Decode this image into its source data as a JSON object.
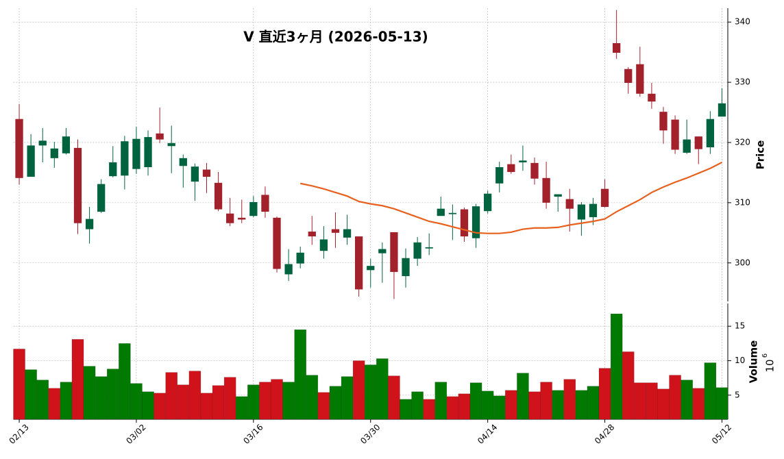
{
  "chart_data": {
    "type": "candlestick",
    "title": "V 直近3ヶ月 (2026-05-13)",
    "categories": [
      "02/13",
      null,
      null,
      null,
      null,
      null,
      null,
      null,
      null,
      null,
      "03/02",
      null,
      null,
      null,
      null,
      null,
      null,
      null,
      null,
      null,
      "03/16",
      null,
      null,
      null,
      null,
      null,
      null,
      null,
      null,
      null,
      "03/30",
      null,
      null,
      null,
      null,
      null,
      null,
      null,
      null,
      null,
      "04/14",
      null,
      null,
      null,
      null,
      null,
      null,
      null,
      null,
      null,
      "04/28",
      null,
      null,
      null,
      null,
      null,
      null,
      null,
      null,
      null,
      "05/12"
    ],
    "open": [
      323.9,
      314.3,
      319.5,
      317.4,
      318.2,
      319.1,
      305.6,
      308.5,
      314.4,
      314.5,
      315.6,
      315.9,
      321.5,
      319.4,
      316.1,
      313.5,
      315.5,
      313.3,
      308.2,
      307.5,
      307.8,
      311.3,
      307.5,
      298.1,
      299.9,
      305.2,
      302.0,
      305.6,
      304.2,
      304.4,
      298.8,
      301.6,
      305.1,
      297.8,
      300.7,
      302.4,
      307.8,
      308.1,
      308.9,
      304.1,
      308.6,
      313.2,
      316.4,
      316.7,
      316.6,
      314.1,
      311.0,
      310.6,
      307.2,
      307.6,
      312.3,
      336.5,
      332.2,
      333.0,
      328.1,
      325.1,
      323.8,
      318.3,
      321.0,
      319.2,
      324.3
    ],
    "high": [
      326.4,
      321.4,
      322.4,
      320.1,
      322.4,
      320.5,
      309.3,
      313.9,
      319.4,
      321.1,
      322.6,
      322.0,
      325.8,
      322.8,
      318.0,
      316.5,
      316.6,
      315.1,
      310.8,
      310.5,
      311.1,
      312.7,
      307.7,
      302.3,
      302.7,
      307.8,
      306.1,
      308.4,
      308.0,
      304.4,
      300.7,
      303.4,
      305.1,
      302.4,
      304.3,
      304.9,
      311.0,
      309.7,
      309.2,
      309.8,
      312.0,
      316.8,
      318.0,
      319.5,
      317.5,
      316.8,
      311.4,
      312.3,
      310.1,
      310.8,
      313.9,
      342.0,
      332.5,
      335.9,
      329.9,
      325.9,
      324.5,
      323.8,
      321.0,
      325.2,
      329.0
    ],
    "low": [
      313.0,
      314.3,
      316.7,
      315.8,
      318.0,
      304.8,
      303.2,
      308.3,
      314.2,
      312.2,
      314.8,
      314.5,
      319.9,
      314.9,
      312.5,
      310.3,
      311.6,
      308.6,
      306.1,
      306.6,
      307.6,
      307.5,
      298.4,
      297.0,
      299.1,
      303.0,
      300.7,
      302.5,
      303.0,
      294.4,
      295.9,
      296.7,
      294.0,
      295.9,
      299.5,
      301.3,
      307.8,
      303.8,
      303.5,
      302.5,
      308.2,
      311.7,
      314.8,
      315.3,
      313.0,
      309.0,
      308.5,
      305.2,
      304.5,
      306.3,
      309.2,
      333.9,
      328.1,
      327.6,
      325.6,
      319.8,
      318.1,
      318.1,
      316.4,
      318.1,
      324.3
    ],
    "close": [
      314.1,
      319.5,
      320.3,
      319.0,
      321.0,
      306.6,
      307.3,
      313.1,
      316.7,
      320.2,
      320.6,
      320.9,
      320.5,
      319.9,
      317.4,
      316.0,
      314.3,
      308.9,
      306.6,
      307.2,
      310.1,
      308.5,
      299.0,
      299.8,
      301.7,
      304.4,
      303.9,
      305.0,
      305.6,
      295.6,
      299.5,
      302.3,
      298.5,
      300.8,
      303.4,
      302.6,
      309.0,
      308.3,
      304.4,
      309.4,
      311.5,
      315.9,
      315.1,
      317.0,
      314.0,
      310.0,
      311.4,
      309.0,
      309.7,
      309.8,
      309.3,
      334.9,
      329.9,
      328.1,
      326.8,
      322.0,
      318.8,
      320.5,
      318.9,
      323.9,
      326.5
    ],
    "up_color": "#006340",
    "down_color": "#a3212b",
    "moving_average": {
      "color": "#e8601c",
      "values": [
        null,
        null,
        null,
        null,
        null,
        null,
        null,
        null,
        null,
        null,
        null,
        null,
        null,
        null,
        null,
        null,
        null,
        null,
        null,
        null,
        null,
        null,
        null,
        null,
        313.2,
        312.8,
        312.3,
        311.7,
        311.1,
        310.2,
        309.8,
        309.5,
        309.0,
        308.3,
        307.6,
        306.9,
        306.5,
        306.0,
        305.5,
        305.0,
        304.9,
        304.9,
        305.1,
        305.6,
        305.8,
        305.8,
        305.9,
        306.3,
        306.6,
        306.9,
        307.3,
        308.5,
        309.5,
        310.5,
        311.7,
        312.6,
        313.4,
        314.1,
        314.9,
        315.7,
        316.7
      ]
    },
    "ylabel": "Price",
    "ylim": [
      293.6,
      342.3
    ],
    "yticks": [
      300,
      310,
      320,
      330,
      340
    ],
    "grid": true,
    "volume": {
      "label": "Volume",
      "scale_base": "10",
      "scale_exponent": "6",
      "up_color": "#007a00",
      "down_color": "#d0121b",
      "ylim": [
        1.5,
        18.3
      ],
      "yticks": [
        5,
        10,
        15
      ],
      "values": [
        11.7,
        8.7,
        7.2,
        6.0,
        6.9,
        13.1,
        9.2,
        7.7,
        8.8,
        12.5,
        6.7,
        5.5,
        5.3,
        8.3,
        6.5,
        8.5,
        5.3,
        6.4,
        7.6,
        4.8,
        6.5,
        6.9,
        7.3,
        6.9,
        14.5,
        7.9,
        5.4,
        6.3,
        7.7,
        10.0,
        9.4,
        10.3,
        7.8,
        4.4,
        5.5,
        4.4,
        6.9,
        4.8,
        5.2,
        6.8,
        5.6,
        4.9,
        5.7,
        8.2,
        5.5,
        6.9,
        5.7,
        7.3,
        5.7,
        6.3,
        8.9,
        16.8,
        11.3,
        6.8,
        6.8,
        5.9,
        7.9,
        7.2,
        6.0,
        9.7,
        6.1
      ]
    }
  }
}
